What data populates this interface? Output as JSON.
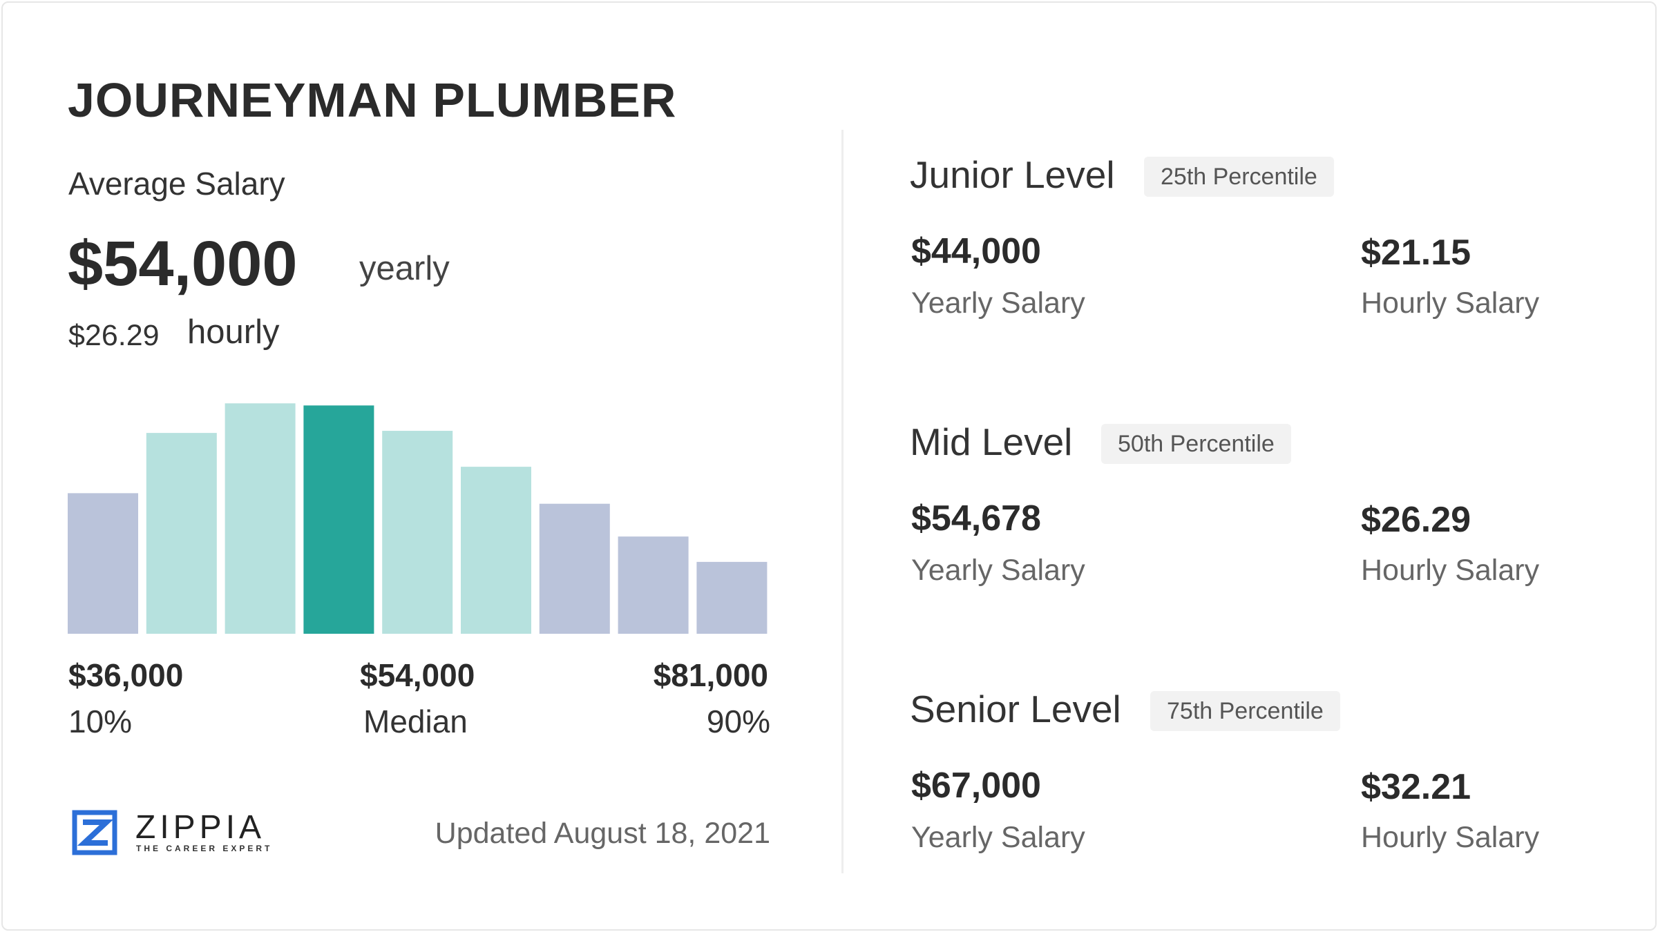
{
  "header": {
    "title": "JOURNEYMAN PLUMBER"
  },
  "summary": {
    "label": "Average Salary",
    "yearly_value": "$54,000",
    "yearly_unit": "yearly",
    "hourly_value": "$26.29",
    "hourly_unit": "hourly"
  },
  "histogram": {
    "values": [
      133,
      190,
      218,
      216,
      192,
      158,
      123,
      92,
      68
    ],
    "colors": [
      "#bac3da",
      "#b6e1de",
      "#b6e1de",
      "#26a69a",
      "#b6e1de",
      "#b6e1de",
      "#bac3da",
      "#bac3da",
      "#bac3da"
    ],
    "low": {
      "value": "$36,000",
      "label": "10%"
    },
    "median": {
      "value": "$54,000",
      "label": "Median"
    },
    "high": {
      "value": "$81,000",
      "label": "90%"
    }
  },
  "levels": [
    {
      "name": "Junior Level",
      "badge": "25th Percentile",
      "yearly": "$44,000",
      "yearly_label": "Yearly Salary",
      "hourly": "$21.15",
      "hourly_label": "Hourly Salary"
    },
    {
      "name": "Mid Level",
      "badge": "50th Percentile",
      "yearly": "$54,678",
      "yearly_label": "Yearly Salary",
      "hourly": "$26.29",
      "hourly_label": "Hourly Salary"
    },
    {
      "name": "Senior Level",
      "badge": "75th Percentile",
      "yearly": "$67,000",
      "yearly_label": "Yearly Salary",
      "hourly": "$32.21",
      "hourly_label": "Hourly Salary"
    }
  ],
  "footer": {
    "brand": "ZIPPIA",
    "tagline": "THE CAREER EXPERT",
    "updated": "Updated August 18, 2021"
  }
}
